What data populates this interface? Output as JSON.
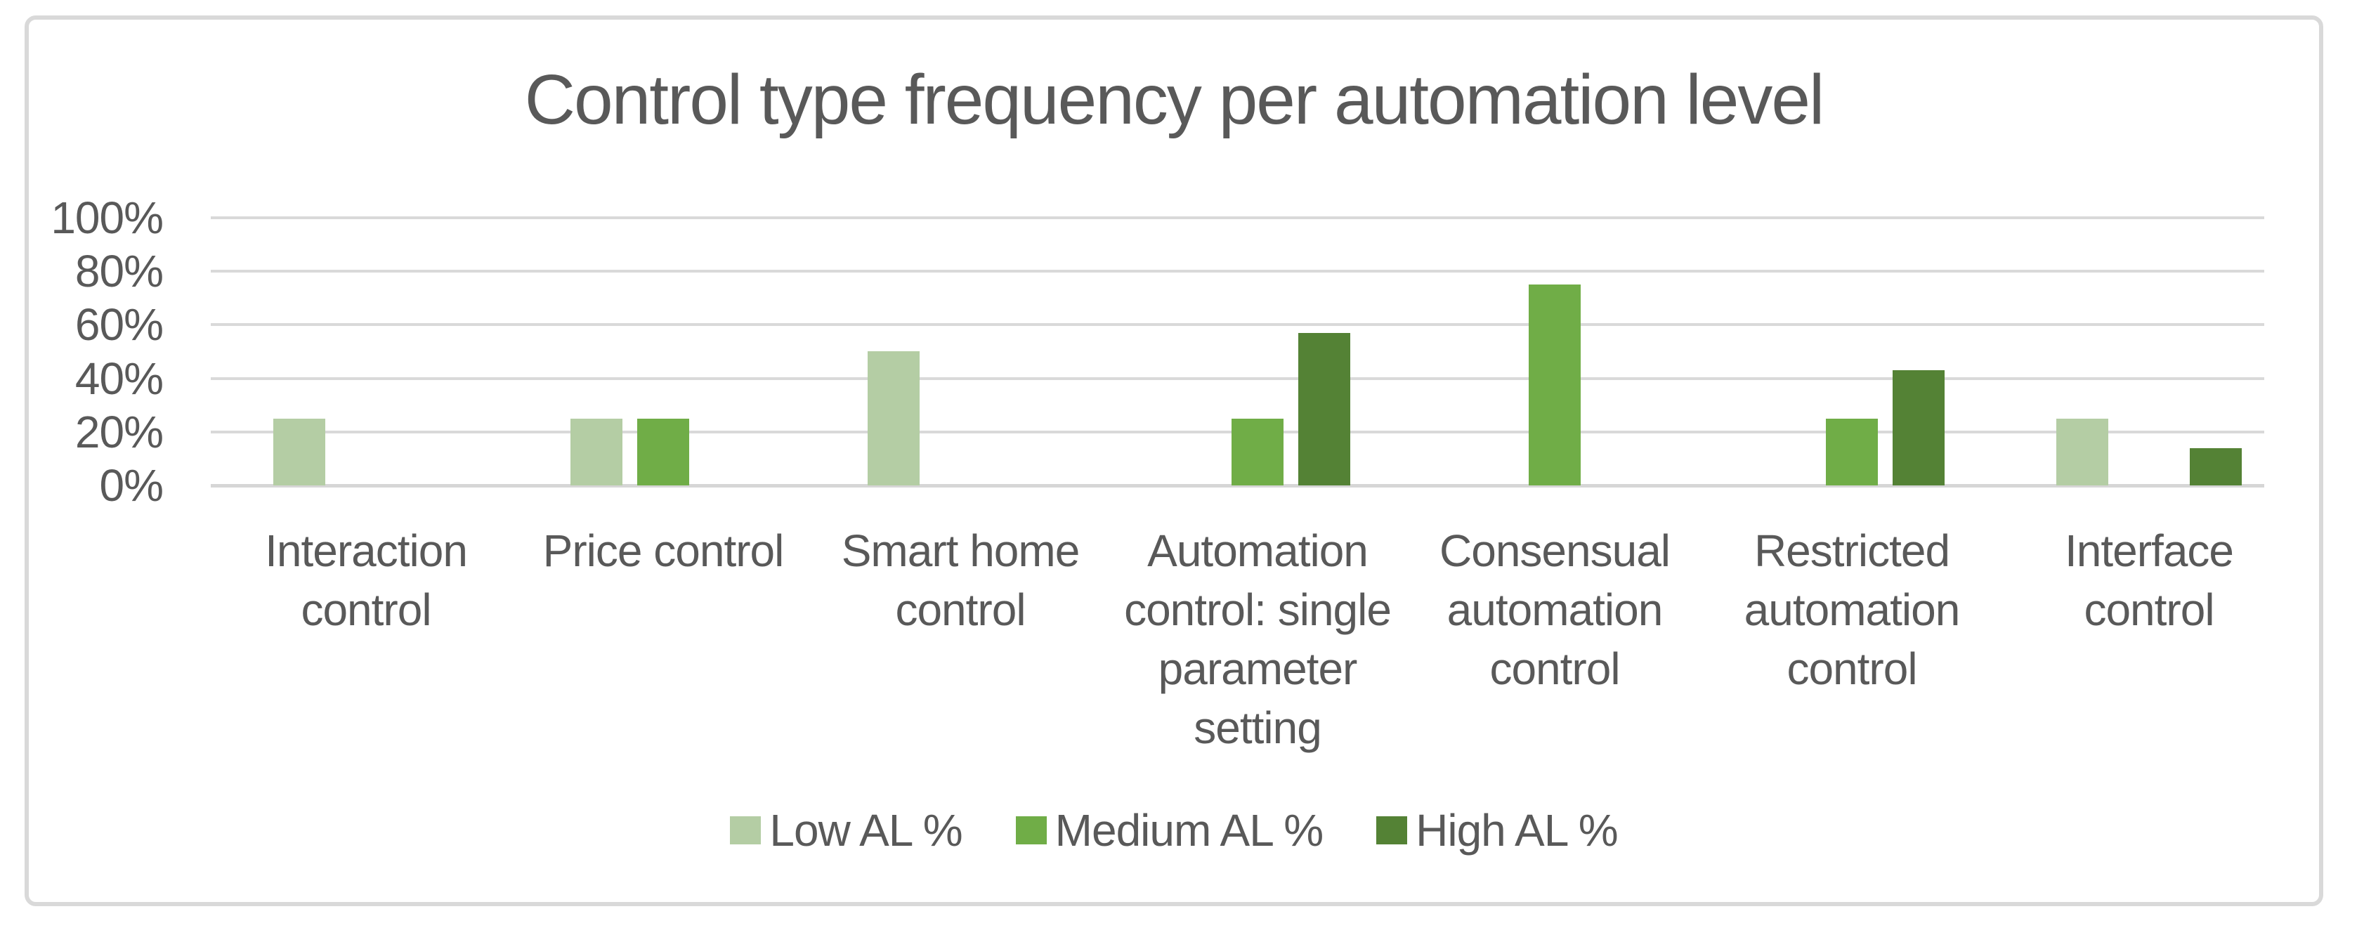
{
  "chart_data": {
    "type": "bar",
    "title": "Control type frequency per automation level",
    "categories": [
      "Interaction\ncontrol",
      "Price control",
      "Smart home\ncontrol",
      "Automation\ncontrol: single\nparameter\nsetting",
      "Consensual\nautomation\ncontrol",
      "Restricted\nautomation\ncontrol",
      "Interface\ncontrol"
    ],
    "series": [
      {
        "name": "Low AL %",
        "color": "#b4cda4",
        "values": [
          25,
          25,
          50,
          0,
          0,
          0,
          25
        ]
      },
      {
        "name": "Medium AL %",
        "color": "#70ad47",
        "values": [
          0,
          25,
          0,
          25,
          75,
          25,
          0
        ]
      },
      {
        "name": "High AL %",
        "color": "#548235",
        "values": [
          0,
          0,
          0,
          57,
          0,
          43,
          14
        ]
      }
    ],
    "ylabel": "",
    "xlabel": "",
    "ylim": [
      0,
      100
    ],
    "y_ticks": [
      "100%",
      "80%",
      "60%",
      "40%",
      "20%",
      "0%"
    ],
    "y_tick_values": [
      100,
      80,
      60,
      40,
      20,
      0
    ],
    "grid": true,
    "legend_position": "bottom"
  },
  "colors": {
    "text": "#595959",
    "gridline": "#d9d9d9",
    "frame_border": "#d9d9d9",
    "background": "#ffffff"
  }
}
